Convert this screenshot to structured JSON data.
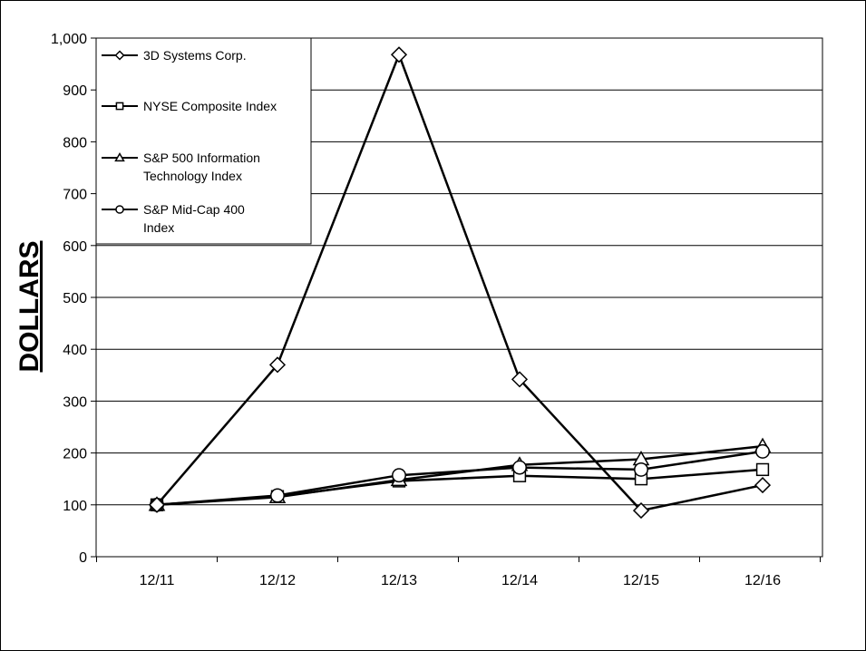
{
  "chart_data": {
    "type": "line",
    "title": "",
    "xlabel": "",
    "ylabel": "DOLLARS",
    "ylim": [
      0,
      1000
    ],
    "yticks": [
      "0",
      "100",
      "200",
      "300",
      "400",
      "500",
      "600",
      "700",
      "800",
      "900",
      "1,000"
    ],
    "categories": [
      "12/11",
      "12/12",
      "12/13",
      "12/14",
      "12/15",
      "12/16"
    ],
    "grid": "horizontal",
    "legend_position": "top-left",
    "series": [
      {
        "name": "3D Systems Corp.",
        "marker": "diamond",
        "values": [
          100,
          370,
          968,
          342,
          89,
          138
        ]
      },
      {
        "name": "NYSE Composite Index",
        "marker": "square",
        "values": [
          100,
          116,
          146,
          156,
          150,
          168
        ]
      },
      {
        "name": "S&P 500 Information Technology Index",
        "marker": "triangle",
        "values": [
          100,
          115,
          148,
          177,
          188,
          213
        ]
      },
      {
        "name": "S&P Mid-Cap 400 Index",
        "marker": "circle",
        "values": [
          100,
          118,
          157,
          172,
          168,
          203
        ]
      }
    ],
    "legend_lines": [
      [
        "3D Systems Corp."
      ],
      [
        "NYSE Composite Index"
      ],
      [
        "S&P 500 Information",
        "Technology Index"
      ],
      [
        "S&P Mid-Cap 400",
        "Index"
      ]
    ]
  }
}
